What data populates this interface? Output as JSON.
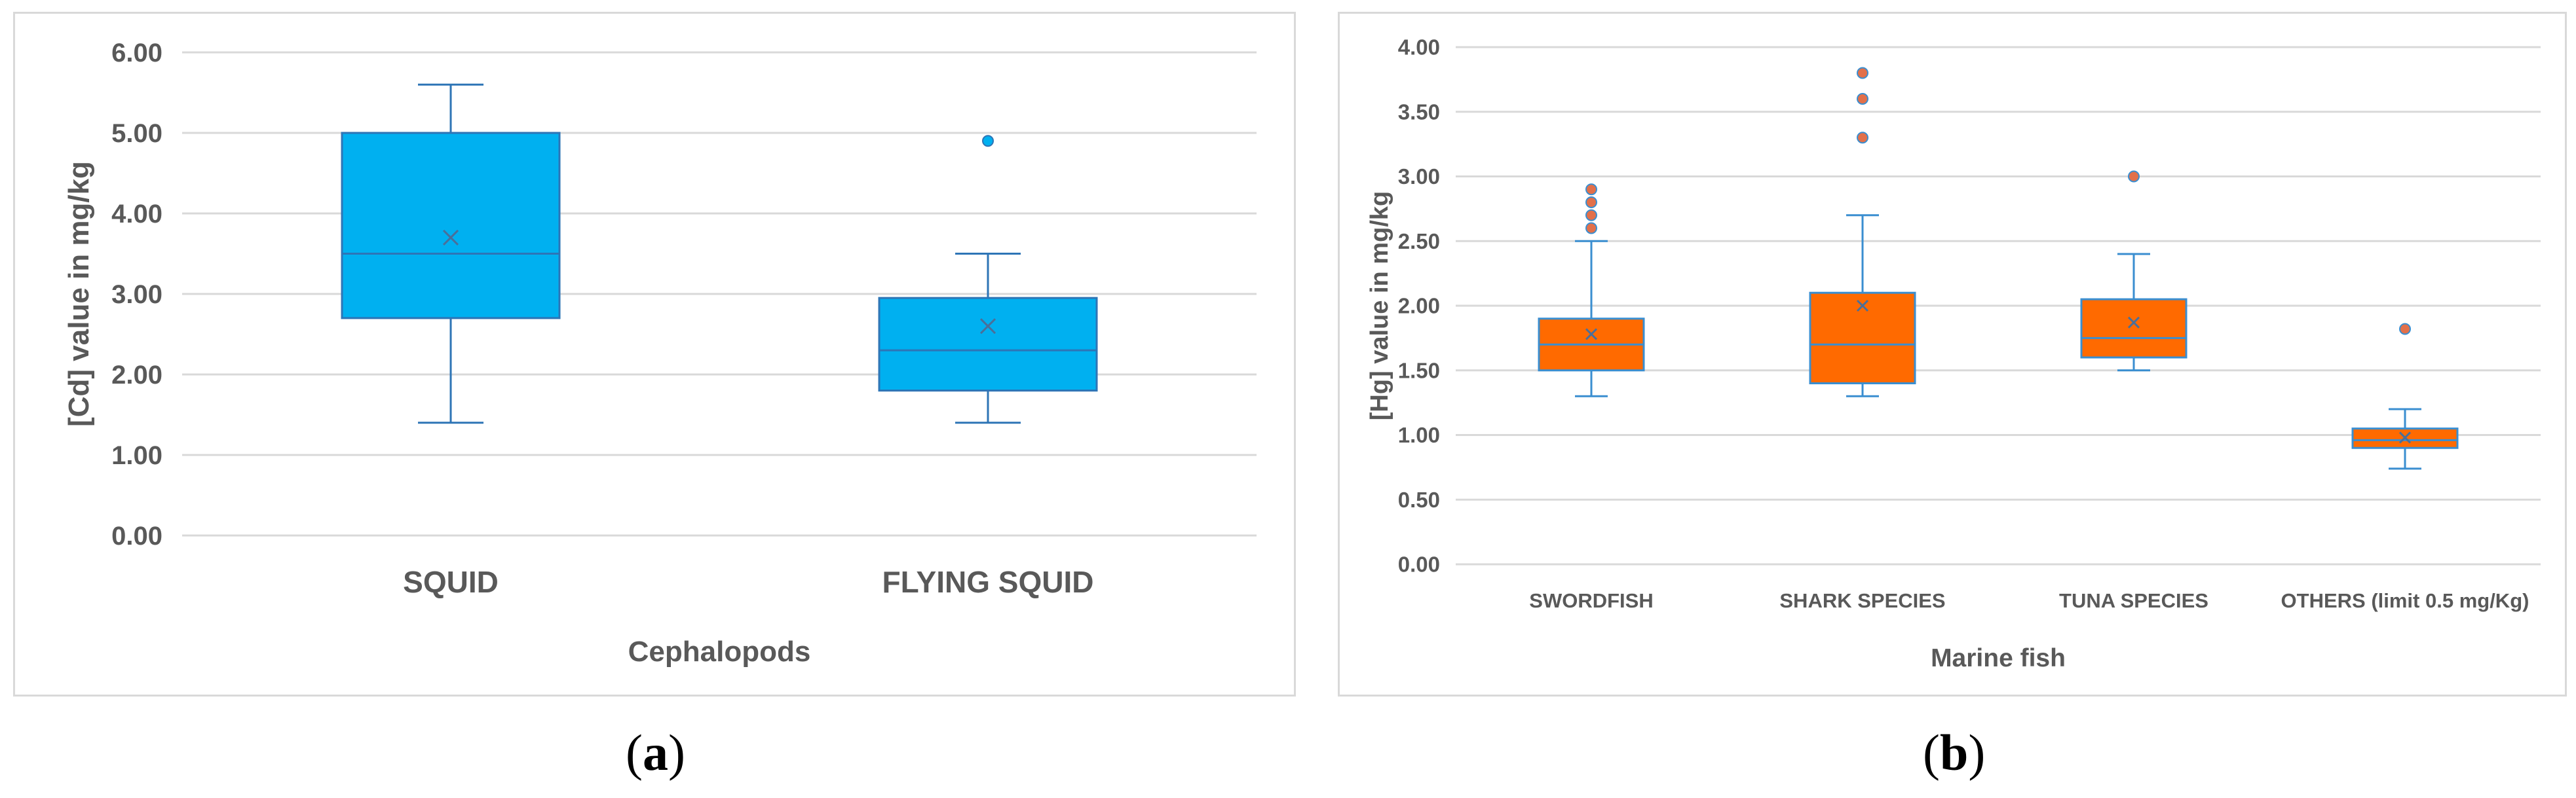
{
  "panels": {
    "a_label": "a",
    "b_label": "b"
  },
  "chart_data": [
    {
      "type": "box",
      "xlabel": "Cephalopods",
      "ylabel": "[Cd] value in mg/kg",
      "ylim": [
        0,
        6
      ],
      "yticks": [
        "0.00",
        "1.00",
        "2.00",
        "3.00",
        "4.00",
        "5.00",
        "6.00"
      ],
      "grid": true,
      "color": "#00b0f0",
      "outlier_color": "#00b0f0",
      "categories": [
        "SQUID",
        "FLYING SQUID"
      ],
      "boxes": [
        {
          "min": 1.4,
          "q1": 2.7,
          "median": 3.5,
          "q3": 5.0,
          "max": 5.6,
          "mean": 3.7,
          "outliers": []
        },
        {
          "min": 1.4,
          "q1": 1.8,
          "median": 2.3,
          "q3": 2.95,
          "max": 3.5,
          "mean": 2.6,
          "outliers": [
            4.9
          ]
        }
      ]
    },
    {
      "type": "box",
      "xlabel": "Marine fish",
      "ylabel": "[Hg] value in mg/kg",
      "ylim": [
        0,
        4
      ],
      "yticks": [
        "0.00",
        "0.50",
        "1.00",
        "1.50",
        "2.00",
        "2.50",
        "3.00",
        "3.50",
        "4.00"
      ],
      "grid": true,
      "color": "#ff6a00",
      "outlier_color": "#e2704a",
      "categories": [
        "SWORDFISH",
        "SHARK SPECIES",
        "TUNA SPECIES",
        "OTHERS (limit 0.5 mg/Kg)"
      ],
      "boxes": [
        {
          "min": 1.3,
          "q1": 1.5,
          "median": 1.7,
          "q3": 1.9,
          "max": 2.5,
          "mean": 1.78,
          "outliers": [
            2.6,
            2.7,
            2.8,
            2.9
          ]
        },
        {
          "min": 1.3,
          "q1": 1.4,
          "median": 1.7,
          "q3": 2.1,
          "max": 2.7,
          "mean": 2.0,
          "outliers": [
            3.3,
            3.6,
            3.8
          ]
        },
        {
          "min": 1.5,
          "q1": 1.6,
          "median": 1.75,
          "q3": 2.05,
          "max": 2.4,
          "mean": 1.87,
          "outliers": [
            3.0
          ]
        },
        {
          "min": 0.74,
          "q1": 0.9,
          "median": 0.96,
          "q3": 1.05,
          "max": 1.2,
          "mean": 0.98,
          "outliers": [
            1.82
          ]
        }
      ]
    }
  ]
}
